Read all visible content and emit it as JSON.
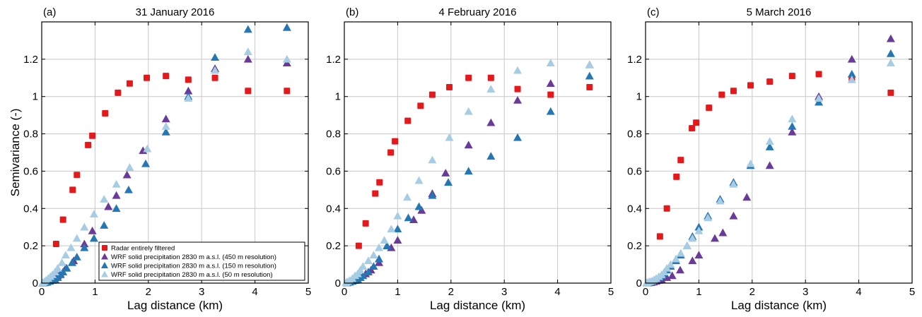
{
  "figure": {
    "ylabel": "Semivariance (-)",
    "xlabel": "Lag distance (km)"
  },
  "colors": {
    "radar": "#e3191c",
    "wrf450": "#6a3a98",
    "wrf150": "#2577b3",
    "wrf50": "#a6cde3"
  },
  "legend": {
    "placement": "bottom-right of panel (a)",
    "entries": [
      {
        "label": "Radar entirely filtered",
        "marker": "square",
        "color_key": "radar"
      },
      {
        "label": "WRF solid precipitation 2830  m a.s.l. (450 m resolution)",
        "marker": "triangle",
        "color_key": "wrf450"
      },
      {
        "label": "WRF solid precipitation 2830  m a.s.l. (150 m resolution)",
        "marker": "triangle",
        "color_key": "wrf150"
      },
      {
        "label": "WRF solid precipitation 2830  m a.s.l. (50 m resolution)",
        "marker": "triangle",
        "color_key": "wrf50"
      }
    ]
  },
  "chart_data": [
    {
      "type": "scatter",
      "panel_label": "(a)",
      "title": "31 January 2016",
      "xlabel": "Lag distance (km)",
      "ylabel": "Semivariance (-)",
      "xlim": [
        0,
        5
      ],
      "ylim": [
        0,
        1.4
      ],
      "xticks": [
        "0",
        "1",
        "2",
        "3",
        "4",
        "5"
      ],
      "yticks": [
        "0",
        "0.2",
        "0.4",
        "0.6",
        "0.8",
        "1",
        "1.2"
      ],
      "grid": true,
      "series": [
        {
          "name": "Radar entirely filtered",
          "marker": "square",
          "color_key": "radar",
          "x": [
            0.27,
            0.4,
            0.58,
            0.66,
            0.87,
            0.95,
            1.19,
            1.43,
            1.65,
            1.97,
            2.33,
            2.75,
            3.25,
            3.87,
            4.6
          ],
          "y": [
            0.21,
            0.34,
            0.5,
            0.58,
            0.74,
            0.79,
            0.91,
            1.02,
            1.07,
            1.1,
            1.11,
            1.09,
            1.1,
            1.03,
            1.03
          ]
        },
        {
          "name": "WRF solid precipitation 2830  m a.s.l. (450 m resolution)",
          "marker": "triangle",
          "color_key": "wrf450",
          "x": [
            0.05,
            0.1,
            0.15,
            0.2,
            0.25,
            0.3,
            0.35,
            0.45,
            0.6,
            0.8,
            0.95,
            1.25,
            1.4,
            1.6,
            1.9,
            2.33,
            2.75,
            3.25,
            3.87,
            4.6
          ],
          "y": [
            0.002,
            0.005,
            0.01,
            0.02,
            0.03,
            0.04,
            0.05,
            0.08,
            0.12,
            0.21,
            0.28,
            0.41,
            0.47,
            0.58,
            0.71,
            0.88,
            1.03,
            1.15,
            1.2,
            1.18
          ]
        },
        {
          "name": "WRF solid precipitation 2830  m a.s.l. (150 m resolution)",
          "marker": "triangle",
          "color_key": "wrf150",
          "x": [
            0.02,
            0.06,
            0.1,
            0.15,
            0.2,
            0.25,
            0.3,
            0.35,
            0.4,
            0.47,
            0.57,
            0.66,
            0.8,
            0.98,
            1.17,
            1.4,
            1.63,
            1.95,
            2.33,
            2.75,
            3.25,
            3.87,
            4.6
          ],
          "y": [
            0.001,
            0.003,
            0.006,
            0.01,
            0.015,
            0.02,
            0.03,
            0.045,
            0.06,
            0.08,
            0.11,
            0.14,
            0.19,
            0.24,
            0.31,
            0.4,
            0.5,
            0.64,
            0.81,
            1.0,
            1.21,
            1.36,
            1.37
          ]
        },
        {
          "name": "WRF solid precipitation 2830  m a.s.l. (50 m resolution)",
          "marker": "triangle",
          "color_key": "wrf50",
          "x": [
            0.02,
            0.05,
            0.08,
            0.12,
            0.16,
            0.2,
            0.25,
            0.3,
            0.38,
            0.45,
            0.55,
            0.66,
            0.8,
            0.98,
            1.17,
            1.4,
            1.65,
            1.98,
            2.33,
            2.75,
            3.25,
            3.87,
            4.6
          ],
          "y": [
            0.003,
            0.008,
            0.015,
            0.025,
            0.035,
            0.045,
            0.06,
            0.08,
            0.11,
            0.15,
            0.19,
            0.24,
            0.3,
            0.37,
            0.45,
            0.53,
            0.62,
            0.72,
            0.84,
            0.99,
            1.14,
            1.24,
            1.2
          ]
        }
      ]
    },
    {
      "type": "scatter",
      "panel_label": "(b)",
      "title": "4 February 2016",
      "xlabel": "Lag distance (km)",
      "ylabel": "",
      "xlim": [
        0,
        5
      ],
      "ylim": [
        0,
        1.4
      ],
      "xticks": [
        "0",
        "1",
        "2",
        "3",
        "4",
        "5"
      ],
      "yticks": [
        "0",
        "0.2",
        "0.4",
        "0.6",
        "0.8",
        "1",
        "1.2"
      ],
      "grid": true,
      "series": [
        {
          "name": "Radar entirely filtered",
          "marker": "square",
          "color_key": "radar",
          "x": [
            0.27,
            0.4,
            0.58,
            0.66,
            0.87,
            0.95,
            1.19,
            1.43,
            1.65,
            1.97,
            2.33,
            2.75,
            3.25,
            3.87,
            4.6
          ],
          "y": [
            0.2,
            0.32,
            0.48,
            0.54,
            0.7,
            0.76,
            0.87,
            0.95,
            1.01,
            1.05,
            1.1,
            1.1,
            1.04,
            1.01,
            1.05
          ]
        },
        {
          "name": "WRF solid precipitation 2830  m a.s.l. (450 m resolution)",
          "marker": "triangle",
          "color_key": "wrf450",
          "x": [
            0.05,
            0.1,
            0.15,
            0.2,
            0.25,
            0.3,
            0.4,
            0.5,
            0.65,
            0.88,
            1.0,
            1.3,
            1.45,
            1.65,
            1.9,
            2.33,
            2.75,
            3.25,
            3.87,
            4.6
          ],
          "y": [
            0.002,
            0.005,
            0.01,
            0.015,
            0.02,
            0.03,
            0.05,
            0.07,
            0.11,
            0.19,
            0.23,
            0.34,
            0.39,
            0.48,
            0.59,
            0.74,
            0.86,
            0.98,
            1.07,
            1.17
          ]
        },
        {
          "name": "WRF solid precipitation 2830  m a.s.l. (150 m resolution)",
          "marker": "triangle",
          "color_key": "wrf150",
          "x": [
            0.05,
            0.1,
            0.15,
            0.2,
            0.25,
            0.3,
            0.35,
            0.45,
            0.55,
            0.65,
            0.8,
            1.0,
            1.2,
            1.4,
            1.65,
            1.95,
            2.33,
            2.75,
            3.25,
            3.87,
            4.6
          ],
          "y": [
            0.002,
            0.005,
            0.01,
            0.015,
            0.02,
            0.03,
            0.04,
            0.06,
            0.09,
            0.13,
            0.2,
            0.29,
            0.35,
            0.41,
            0.47,
            0.54,
            0.6,
            0.68,
            0.78,
            0.92,
            1.11
          ]
        },
        {
          "name": "WRF solid precipitation 2830  m a.s.l. (50 m resolution)",
          "marker": "triangle",
          "color_key": "wrf50",
          "x": [
            0.03,
            0.06,
            0.1,
            0.15,
            0.2,
            0.25,
            0.3,
            0.35,
            0.45,
            0.55,
            0.65,
            0.75,
            0.88,
            1.0,
            1.18,
            1.4,
            1.65,
            1.97,
            2.33,
            2.75,
            3.25,
            3.87,
            4.6
          ],
          "y": [
            0.003,
            0.008,
            0.015,
            0.025,
            0.04,
            0.05,
            0.07,
            0.09,
            0.12,
            0.15,
            0.19,
            0.23,
            0.29,
            0.36,
            0.46,
            0.55,
            0.66,
            0.78,
            0.92,
            1.04,
            1.14,
            1.18,
            1.17
          ]
        }
      ]
    },
    {
      "type": "scatter",
      "panel_label": "(c)",
      "title": "5 March 2016",
      "xlabel": "Lag distance (km)",
      "ylabel": "",
      "xlim": [
        0,
        5
      ],
      "ylim": [
        0,
        1.4
      ],
      "xticks": [
        "0",
        "1",
        "2",
        "3",
        "4",
        "5"
      ],
      "yticks": [
        "0",
        "0.2",
        "0.4",
        "0.6",
        "0.8",
        "1",
        "1.2"
      ],
      "grid": true,
      "series": [
        {
          "name": "Radar entirely filtered",
          "marker": "square",
          "color_key": "radar",
          "x": [
            0.27,
            0.4,
            0.58,
            0.66,
            0.87,
            0.95,
            1.19,
            1.43,
            1.65,
            1.97,
            2.33,
            2.75,
            3.25,
            3.87,
            4.6
          ],
          "y": [
            0.25,
            0.4,
            0.57,
            0.66,
            0.83,
            0.86,
            0.94,
            1.01,
            1.03,
            1.06,
            1.08,
            1.11,
            1.12,
            1.09,
            1.02
          ]
        },
        {
          "name": "WRF solid precipitation 2830  m a.s.l. (450 m resolution)",
          "marker": "triangle",
          "color_key": "wrf450",
          "x": [
            0.05,
            0.1,
            0.15,
            0.2,
            0.25,
            0.3,
            0.4,
            0.5,
            0.65,
            0.88,
            1.0,
            1.3,
            1.45,
            1.65,
            1.9,
            2.33,
            2.75,
            3.25,
            3.87,
            4.6
          ],
          "y": [
            0.001,
            0.003,
            0.006,
            0.01,
            0.015,
            0.02,
            0.03,
            0.04,
            0.07,
            0.12,
            0.15,
            0.24,
            0.27,
            0.36,
            0.46,
            0.63,
            0.81,
            1.0,
            1.2,
            1.31
          ]
        },
        {
          "name": "WRF solid precipitation 2830  m a.s.l. (150 m resolution)",
          "marker": "triangle",
          "color_key": "wrf150",
          "x": [
            0.02,
            0.05,
            0.08,
            0.12,
            0.16,
            0.2,
            0.25,
            0.3,
            0.35,
            0.4,
            0.47,
            0.57,
            0.66,
            0.78,
            0.88,
            1.0,
            1.17,
            1.4,
            1.65,
            1.97,
            2.33,
            2.75,
            3.25,
            3.87,
            4.6
          ],
          "y": [
            0.001,
            0.003,
            0.006,
            0.01,
            0.015,
            0.02,
            0.03,
            0.04,
            0.055,
            0.07,
            0.09,
            0.12,
            0.15,
            0.2,
            0.25,
            0.3,
            0.36,
            0.45,
            0.54,
            0.63,
            0.73,
            0.84,
            0.97,
            1.12,
            1.23
          ]
        },
        {
          "name": "WRF solid precipitation 2830  m a.s.l. (50 m resolution)",
          "marker": "triangle",
          "color_key": "wrf50",
          "x": [
            0.02,
            0.05,
            0.08,
            0.12,
            0.16,
            0.2,
            0.25,
            0.3,
            0.35,
            0.4,
            0.47,
            0.57,
            0.66,
            0.78,
            0.88,
            1.0,
            1.17,
            1.4,
            1.65,
            1.97,
            2.33,
            2.75,
            3.25,
            3.87,
            4.6
          ],
          "y": [
            0.002,
            0.005,
            0.008,
            0.012,
            0.018,
            0.025,
            0.035,
            0.045,
            0.06,
            0.08,
            0.1,
            0.13,
            0.16,
            0.2,
            0.24,
            0.28,
            0.35,
            0.44,
            0.53,
            0.64,
            0.76,
            0.88,
            0.99,
            1.09,
            1.18
          ]
        }
      ]
    }
  ]
}
